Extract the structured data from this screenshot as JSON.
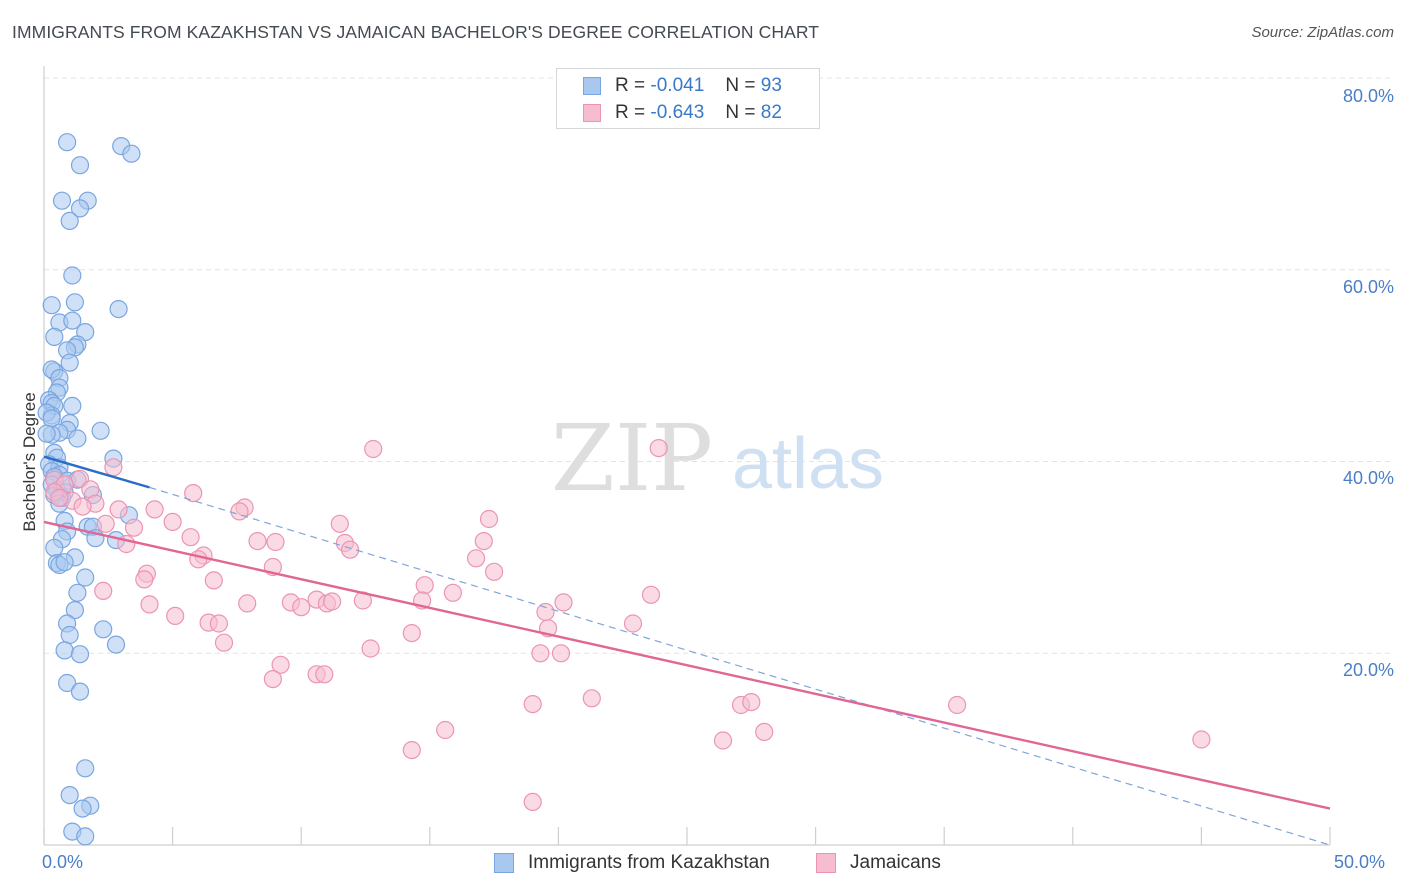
{
  "title": "IMMIGRANTS FROM KAZAKHSTAN VS JAMAICAN BACHELOR'S DEGREE CORRELATION CHART",
  "source": "Source: ZipAtlas.com",
  "watermark": {
    "zip": "ZIP",
    "atlas": "atlas"
  },
  "colors": {
    "blue_fill": "#a9c8f0",
    "blue_stroke": "#7aa6e0",
    "blue_line": "#2a6cc9",
    "pink_fill": "#f6bdd0",
    "pink_stroke": "#ec94b3",
    "pink_line": "#e06694",
    "grid": "#e3e3e3",
    "axis": "#cfcfcf",
    "tick_label": "#4a7ec9"
  },
  "legend": {
    "series1": {
      "r_label": "R =",
      "r_value": "-0.041",
      "n_label": "N =",
      "n_value": "93"
    },
    "series2": {
      "r_label": "R =",
      "r_value": "-0.643",
      "n_label": "N =",
      "n_value": "82"
    }
  },
  "bottom_legend": [
    "Immigrants from Kazakhstan",
    "Jamaicans"
  ],
  "chart_data": {
    "type": "scatter",
    "title": "IMMIGRANTS FROM KAZAKHSTAN VS JAMAICAN BACHELOR'S DEGREE CORRELATION CHART",
    "xlabel": "",
    "ylabel": "Bachelor's Degree",
    "xlim": [
      0,
      50
    ],
    "ylim": [
      0,
      80
    ],
    "x_tick_labels": [
      "0.0%",
      "50.0%"
    ],
    "y_ticks": [
      20,
      40,
      60,
      80
    ],
    "y_tick_labels": [
      "20.0%",
      "40.0%",
      "60.0%",
      "80.0%"
    ],
    "grid": true,
    "legend_position": "top-center",
    "series": [
      {
        "name": "Immigrants from Kazakhstan",
        "r": -0.041,
        "n": 93,
        "trend_solid": [
          [
            0.0,
            40.5
          ],
          [
            4.1,
            37.3
          ]
        ],
        "trend_dashed": [
          [
            4.1,
            37.3
          ],
          [
            50.0,
            0.0
          ]
        ],
        "points": [
          [
            0.9,
            73.3
          ],
          [
            1.4,
            70.9
          ],
          [
            3.0,
            72.9
          ],
          [
            3.4,
            72.1
          ],
          [
            0.7,
            67.2
          ],
          [
            1.7,
            67.2
          ],
          [
            1.4,
            66.4
          ],
          [
            1.0,
            65.1
          ],
          [
            1.1,
            59.4
          ],
          [
            0.3,
            56.3
          ],
          [
            1.2,
            56.6
          ],
          [
            2.9,
            55.9
          ],
          [
            0.6,
            54.5
          ],
          [
            1.1,
            54.7
          ],
          [
            1.6,
            53.5
          ],
          [
            0.4,
            53.0
          ],
          [
            1.3,
            52.2
          ],
          [
            1.2,
            51.9
          ],
          [
            0.9,
            51.6
          ],
          [
            1.0,
            50.3
          ],
          [
            0.4,
            49.4
          ],
          [
            0.3,
            49.6
          ],
          [
            0.6,
            48.7
          ],
          [
            0.6,
            47.7
          ],
          [
            0.5,
            47.2
          ],
          [
            0.2,
            46.4
          ],
          [
            0.3,
            46.1
          ],
          [
            1.1,
            45.8
          ],
          [
            0.4,
            45.8
          ],
          [
            0.3,
            44.8
          ],
          [
            0.1,
            45.1
          ],
          [
            0.3,
            44.5
          ],
          [
            1.0,
            44.0
          ],
          [
            0.9,
            43.3
          ],
          [
            0.6,
            43.0
          ],
          [
            0.3,
            42.8
          ],
          [
            0.1,
            42.9
          ],
          [
            2.2,
            43.2
          ],
          [
            1.3,
            42.4
          ],
          [
            0.4,
            40.9
          ],
          [
            0.5,
            40.4
          ],
          [
            0.2,
            39.7
          ],
          [
            0.6,
            39.4
          ],
          [
            0.3,
            39.0
          ],
          [
            0.6,
            38.6
          ],
          [
            0.4,
            38.4
          ],
          [
            0.9,
            38.0
          ],
          [
            1.3,
            38.1
          ],
          [
            2.7,
            40.3
          ],
          [
            0.3,
            37.6
          ],
          [
            0.5,
            37.0
          ],
          [
            0.8,
            36.8
          ],
          [
            0.4,
            36.5
          ],
          [
            0.7,
            36.2
          ],
          [
            1.9,
            36.5
          ],
          [
            3.3,
            34.4
          ],
          [
            0.6,
            35.6
          ],
          [
            0.8,
            33.8
          ],
          [
            0.9,
            32.7
          ],
          [
            1.7,
            33.2
          ],
          [
            1.9,
            33.2
          ],
          [
            2.0,
            32.0
          ],
          [
            2.8,
            31.8
          ],
          [
            0.7,
            31.9
          ],
          [
            0.4,
            31.0
          ],
          [
            1.2,
            30.0
          ],
          [
            0.5,
            29.4
          ],
          [
            0.6,
            29.2
          ],
          [
            0.8,
            29.5
          ],
          [
            1.6,
            27.9
          ],
          [
            1.3,
            26.3
          ],
          [
            1.2,
            24.5
          ],
          [
            0.9,
            23.1
          ],
          [
            2.3,
            22.5
          ],
          [
            1.0,
            21.9
          ],
          [
            2.8,
            20.9
          ],
          [
            0.8,
            20.3
          ],
          [
            1.4,
            19.9
          ],
          [
            0.9,
            16.9
          ],
          [
            1.4,
            16.0
          ],
          [
            1.6,
            8.0
          ],
          [
            1.0,
            5.2
          ],
          [
            1.8,
            4.1
          ],
          [
            1.5,
            3.8
          ],
          [
            1.1,
            1.4
          ],
          [
            1.6,
            0.9
          ]
        ]
      },
      {
        "name": "Jamaicans",
        "r": -0.643,
        "n": 82,
        "trend": [
          [
            0.0,
            33.7
          ],
          [
            50.0,
            3.8
          ]
        ],
        "points": [
          [
            0.4,
            38.1
          ],
          [
            1.4,
            38.2
          ],
          [
            0.8,
            37.6
          ],
          [
            1.8,
            37.1
          ],
          [
            0.4,
            36.8
          ],
          [
            1.1,
            35.9
          ],
          [
            2.0,
            35.6
          ],
          [
            1.5,
            35.3
          ],
          [
            2.9,
            35.0
          ],
          [
            4.3,
            35.0
          ],
          [
            7.8,
            35.2
          ],
          [
            7.6,
            34.8
          ],
          [
            0.6,
            36.2
          ],
          [
            2.7,
            39.4
          ],
          [
            5.8,
            36.7
          ],
          [
            12.8,
            41.3
          ],
          [
            23.9,
            41.4
          ],
          [
            17.3,
            34.0
          ],
          [
            11.5,
            33.5
          ],
          [
            2.4,
            33.5
          ],
          [
            3.5,
            33.1
          ],
          [
            5.0,
            33.7
          ],
          [
            5.7,
            32.1
          ],
          [
            8.3,
            31.7
          ],
          [
            9.0,
            31.6
          ],
          [
            11.7,
            31.5
          ],
          [
            17.1,
            31.7
          ],
          [
            11.9,
            30.8
          ],
          [
            3.2,
            31.4
          ],
          [
            16.8,
            29.9
          ],
          [
            6.2,
            30.2
          ],
          [
            6.0,
            29.8
          ],
          [
            8.9,
            29.0
          ],
          [
            17.5,
            28.5
          ],
          [
            4.0,
            28.3
          ],
          [
            3.9,
            27.7
          ],
          [
            6.6,
            27.6
          ],
          [
            14.8,
            27.1
          ],
          [
            14.7,
            25.5
          ],
          [
            15.9,
            26.3
          ],
          [
            9.6,
            25.3
          ],
          [
            10.0,
            24.8
          ],
          [
            10.6,
            25.6
          ],
          [
            11.0,
            25.2
          ],
          [
            11.2,
            25.4
          ],
          [
            12.4,
            25.5
          ],
          [
            7.9,
            25.2
          ],
          [
            4.1,
            25.1
          ],
          [
            2.3,
            26.5
          ],
          [
            20.2,
            25.3
          ],
          [
            23.6,
            26.1
          ],
          [
            19.5,
            24.3
          ],
          [
            5.1,
            23.9
          ],
          [
            6.4,
            23.2
          ],
          [
            6.8,
            23.1
          ],
          [
            7.0,
            21.1
          ],
          [
            12.7,
            20.5
          ],
          [
            19.3,
            20.0
          ],
          [
            14.3,
            22.1
          ],
          [
            19.6,
            22.6
          ],
          [
            22.9,
            23.1
          ],
          [
            9.2,
            18.8
          ],
          [
            8.9,
            17.3
          ],
          [
            10.6,
            17.8
          ],
          [
            10.9,
            17.8
          ],
          [
            20.1,
            20.0
          ],
          [
            19.0,
            14.7
          ],
          [
            21.3,
            15.3
          ],
          [
            27.1,
            14.6
          ],
          [
            27.5,
            14.9
          ],
          [
            26.4,
            10.9
          ],
          [
            28.0,
            11.8
          ],
          [
            35.5,
            14.6
          ],
          [
            15.6,
            12.0
          ],
          [
            14.3,
            9.9
          ],
          [
            45.0,
            11.0
          ],
          [
            19.0,
            4.5
          ]
        ]
      }
    ]
  }
}
